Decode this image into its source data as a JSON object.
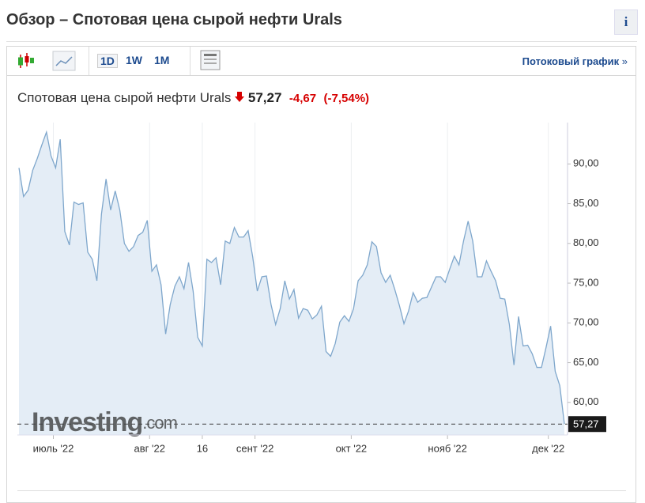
{
  "header": {
    "title": "Обзор – Спотовая цена сырой нефти Urals",
    "info": "i"
  },
  "toolbar": {
    "periods": [
      "1D",
      "1W",
      "1M"
    ],
    "stream_link": "Потоковый график",
    "stream_arrow": "»"
  },
  "quote": {
    "name": "Спотовая цена сырой нефти Urals",
    "price": "57,27",
    "change": "-4,67",
    "change_pct": "(-7,54%)"
  },
  "chart_data": {
    "type": "area",
    "watermark": "Investing",
    "watermark_suffix": ".com",
    "color": "#7fa7cc",
    "fill": "#e4edf6",
    "values": [
      89.5,
      85.9,
      86.7,
      89.2,
      90.7,
      92.4,
      94.0,
      91.0,
      89.5,
      93.1,
      81.5,
      79.8,
      85.2,
      84.9,
      85.1,
      78.9,
      78.0,
      75.3,
      83.7,
      88.1,
      84.2,
      86.6,
      84.2,
      80.0,
      79.0,
      79.6,
      81.0,
      81.4,
      82.9,
      76.5,
      77.3,
      74.8,
      68.6,
      72.3,
      74.6,
      75.8,
      74.3,
      77.6,
      74.0,
      68.2,
      67.1,
      78.0,
      77.6,
      78.2,
      74.8,
      80.3,
      80.0,
      82.0,
      80.8,
      80.8,
      81.6,
      78.3,
      74.0,
      75.8,
      75.9,
      72.3,
      69.8,
      71.8,
      75.3,
      73.0,
      74.2,
      70.6,
      71.8,
      71.6,
      70.5,
      71.0,
      72.1,
      66.4,
      65.8,
      67.4,
      70.1,
      70.9,
      70.2,
      71.8,
      75.3,
      76.0,
      77.3,
      80.2,
      79.6,
      76.3,
      75.1,
      76.0,
      74.2,
      72.2,
      69.9,
      71.5,
      73.8,
      72.6,
      73.1,
      73.2,
      74.5,
      75.8,
      75.8,
      75.1,
      76.8,
      78.4,
      77.3,
      80.3,
      82.8,
      80.3,
      75.8,
      75.8,
      77.8,
      76.5,
      75.3,
      73.1,
      73.0,
      69.8,
      64.7,
      70.8,
      67.1,
      67.2,
      66.1,
      64.4,
      64.4,
      66.9,
      69.6,
      63.9,
      62.1,
      57.27
    ],
    "xlim": [
      0,
      119
    ],
    "xticks": [
      {
        "value": 7.5,
        "label": "июль '22"
      },
      {
        "value": 28.5,
        "label": "авг '22"
      },
      {
        "value": 40,
        "label": "16"
      },
      {
        "value": 51.5,
        "label": "сент '22"
      },
      {
        "value": 72.5,
        "label": "окт '22"
      },
      {
        "value": 93.5,
        "label": "нояб '22"
      },
      {
        "value": 115.5,
        "label": "дек '22"
      }
    ],
    "ylim": [
      55.9,
      95.2
    ],
    "yticks": [
      {
        "value": 60,
        "label": "60,00"
      },
      {
        "value": 65,
        "label": "65,00"
      },
      {
        "value": 70,
        "label": "70,00"
      },
      {
        "value": 75,
        "label": "75,00"
      },
      {
        "value": 80,
        "label": "80,00"
      },
      {
        "value": 85,
        "label": "85,00"
      },
      {
        "value": 90,
        "label": "90,00"
      }
    ],
    "price_marker": {
      "value": 57.27,
      "label": "57,27"
    },
    "grid": true
  }
}
